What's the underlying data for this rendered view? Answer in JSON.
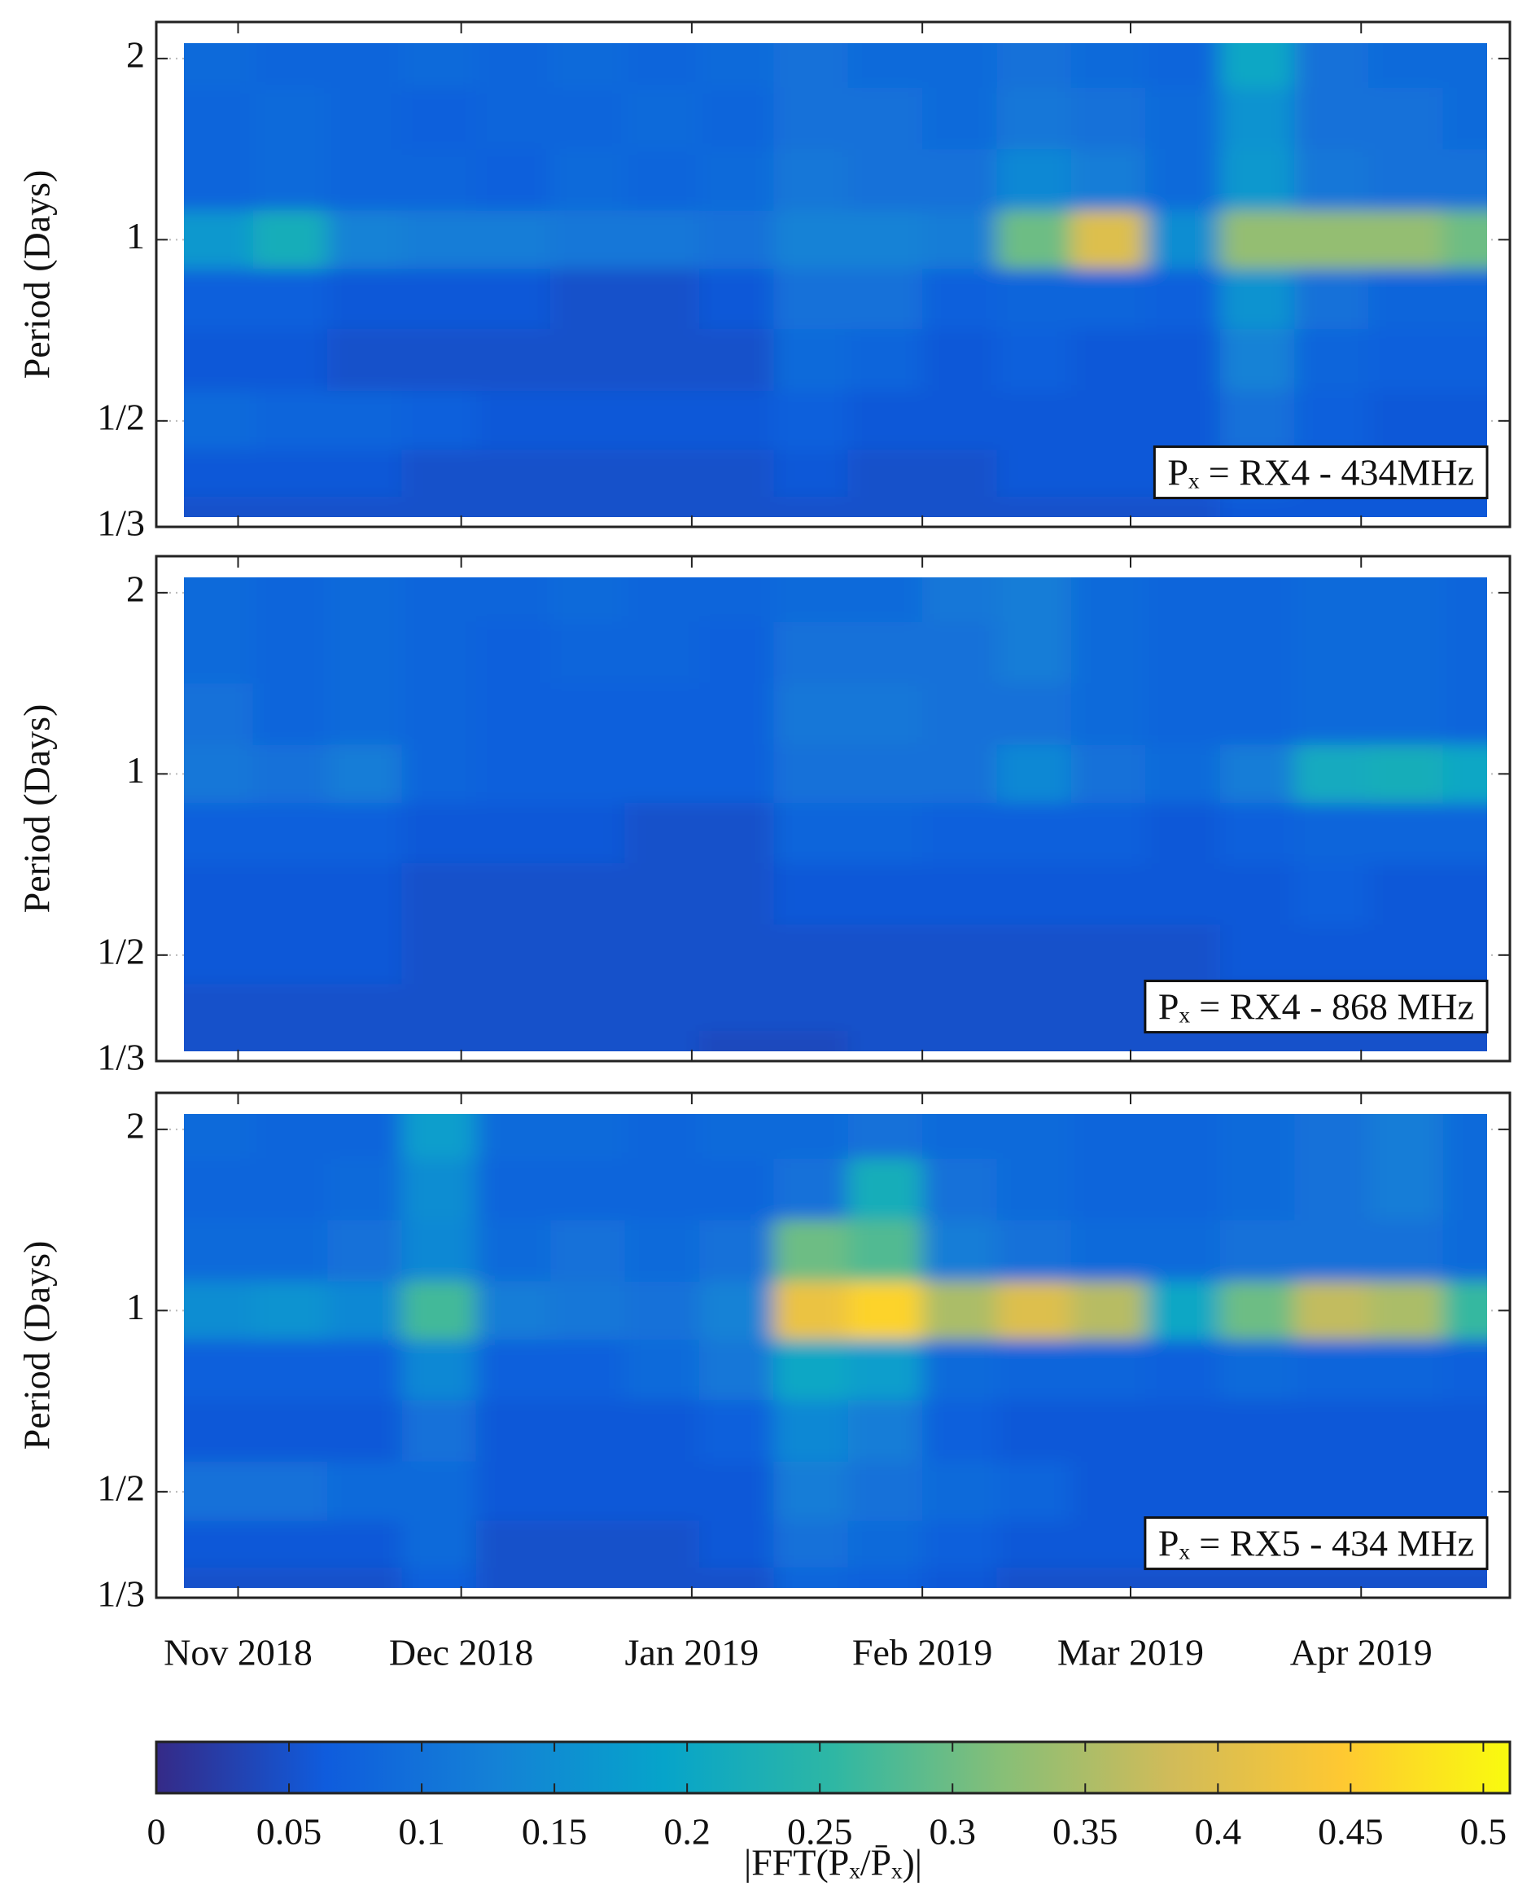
{
  "chart_data": [
    {
      "type": "heatmap",
      "y_label": "Period (Days)",
      "annotation": "Pₓ = RX4 - 434MHz",
      "xlim": [
        "2018-10-21",
        "2019-04-21"
      ],
      "xticks": [
        {
          "value": "2018-11-01",
          "label": "Nov 2018"
        },
        {
          "value": "2018-12-01",
          "label": "Dec 2018"
        },
        {
          "value": "2019-01-01",
          "label": "Jan 2019"
        },
        {
          "value": "2019-02-01",
          "label": "Feb 2019"
        },
        {
          "value": "2019-03-01",
          "label": "Mar 2019"
        },
        {
          "value": "2019-04-01",
          "label": "Apr 2019"
        }
      ],
      "ylim": [
        0.3333,
        2.3
      ],
      "log_y": true,
      "grid": true,
      "yticks": [
        {
          "value": 0.3333,
          "label": "1/3"
        },
        {
          "value": 0.5,
          "label": "1/2"
        },
        1,
        2
      ],
      "x": [
        "2018-10-29",
        "2018-11-08",
        "2018-11-18",
        "2018-11-28",
        "2018-12-08",
        "2018-12-18",
        "2018-12-28",
        "2019-01-07",
        "2019-01-17",
        "2019-01-27",
        "2019-02-06",
        "2019-02-16",
        "2019-02-26",
        "2019-03-08",
        "2019-03-18",
        "2019-03-28",
        "2019-04-07",
        "2019-04-17"
      ],
      "y": [
        2,
        1.6,
        1.25,
        1,
        0.8,
        0.63,
        0.5,
        0.4,
        0.35
      ],
      "z": [
        [
          0.09,
          0.08,
          0.08,
          0.09,
          0.08,
          0.09,
          0.08,
          0.09,
          0.1,
          0.09,
          0.09,
          0.1,
          0.09,
          0.08,
          0.2,
          0.1,
          0.09,
          0.09
        ],
        [
          0.08,
          0.09,
          0.08,
          0.07,
          0.08,
          0.08,
          0.09,
          0.08,
          0.1,
          0.1,
          0.09,
          0.11,
          0.1,
          0.09,
          0.16,
          0.1,
          0.1,
          0.09
        ],
        [
          0.08,
          0.09,
          0.08,
          0.08,
          0.07,
          0.09,
          0.08,
          0.09,
          0.11,
          0.1,
          0.1,
          0.14,
          0.12,
          0.09,
          0.17,
          0.11,
          0.1,
          0.1
        ],
        [
          0.17,
          0.22,
          0.13,
          0.12,
          0.12,
          0.11,
          0.11,
          0.1,
          0.13,
          0.13,
          0.12,
          0.3,
          0.4,
          0.15,
          0.33,
          0.33,
          0.33,
          0.3
        ],
        [
          0.07,
          0.07,
          0.06,
          0.06,
          0.06,
          0.05,
          0.05,
          0.06,
          0.1,
          0.1,
          0.07,
          0.08,
          0.08,
          0.07,
          0.16,
          0.1,
          0.08,
          0.08
        ],
        [
          0.06,
          0.06,
          0.05,
          0.05,
          0.05,
          0.05,
          0.05,
          0.05,
          0.09,
          0.08,
          0.06,
          0.07,
          0.06,
          0.06,
          0.13,
          0.08,
          0.07,
          0.07
        ],
        [
          0.09,
          0.08,
          0.08,
          0.07,
          0.06,
          0.06,
          0.06,
          0.06,
          0.07,
          0.06,
          0.06,
          0.06,
          0.06,
          0.06,
          0.1,
          0.07,
          0.06,
          0.06
        ],
        [
          0.06,
          0.06,
          0.06,
          0.05,
          0.05,
          0.05,
          0.05,
          0.05,
          0.06,
          0.05,
          0.05,
          0.06,
          0.06,
          0.06,
          0.08,
          0.06,
          0.06,
          0.06
        ],
        [
          0.05,
          0.05,
          0.05,
          0.05,
          0.05,
          0.05,
          0.05,
          0.05,
          0.05,
          0.05,
          0.05,
          0.05,
          0.05,
          0.05,
          0.06,
          0.06,
          0.06,
          0.06
        ]
      ]
    },
    {
      "type": "heatmap",
      "y_label": "Period (Days)",
      "annotation": "Pₓ = RX4 - 868 MHz",
      "xlim": [
        "2018-10-21",
        "2019-04-21"
      ],
      "xticks": [
        {
          "value": "2018-11-01",
          "label": "Nov 2018"
        },
        {
          "value": "2018-12-01",
          "label": "Dec 2018"
        },
        {
          "value": "2019-01-01",
          "label": "Jan 2019"
        },
        {
          "value": "2019-02-01",
          "label": "Feb 2019"
        },
        {
          "value": "2019-03-01",
          "label": "Mar 2019"
        },
        {
          "value": "2019-04-01",
          "label": "Apr 2019"
        }
      ],
      "ylim": [
        0.3333,
        2.3
      ],
      "log_y": true,
      "grid": true,
      "yticks": [
        {
          "value": 0.3333,
          "label": "1/3"
        },
        {
          "value": 0.5,
          "label": "1/2"
        },
        1,
        2
      ],
      "x": [
        "2018-10-29",
        "2018-11-08",
        "2018-11-18",
        "2018-11-28",
        "2018-12-08",
        "2018-12-18",
        "2018-12-28",
        "2019-01-07",
        "2019-01-17",
        "2019-01-27",
        "2019-02-06",
        "2019-02-16",
        "2019-02-26",
        "2019-03-08",
        "2019-03-18",
        "2019-03-28",
        "2019-04-07",
        "2019-04-17"
      ],
      "y": [
        2,
        1.6,
        1.25,
        1,
        0.8,
        0.63,
        0.5,
        0.4,
        0.35
      ],
      "z": [
        [
          0.09,
          0.08,
          0.09,
          0.08,
          0.08,
          0.09,
          0.08,
          0.08,
          0.09,
          0.09,
          0.11,
          0.12,
          0.09,
          0.08,
          0.08,
          0.09,
          0.09,
          0.08
        ],
        [
          0.09,
          0.08,
          0.09,
          0.08,
          0.07,
          0.08,
          0.08,
          0.07,
          0.1,
          0.1,
          0.1,
          0.12,
          0.09,
          0.08,
          0.08,
          0.09,
          0.09,
          0.08
        ],
        [
          0.1,
          0.08,
          0.09,
          0.08,
          0.07,
          0.07,
          0.07,
          0.07,
          0.11,
          0.11,
          0.1,
          0.1,
          0.09,
          0.08,
          0.08,
          0.09,
          0.09,
          0.08
        ],
        [
          0.11,
          0.1,
          0.12,
          0.08,
          0.07,
          0.07,
          0.07,
          0.07,
          0.1,
          0.1,
          0.1,
          0.14,
          0.1,
          0.09,
          0.12,
          0.21,
          0.22,
          0.2
        ],
        [
          0.07,
          0.07,
          0.07,
          0.06,
          0.06,
          0.06,
          0.05,
          0.05,
          0.08,
          0.08,
          0.07,
          0.07,
          0.07,
          0.06,
          0.07,
          0.08,
          0.08,
          0.08
        ],
        [
          0.06,
          0.06,
          0.06,
          0.05,
          0.05,
          0.05,
          0.05,
          0.05,
          0.06,
          0.06,
          0.06,
          0.06,
          0.06,
          0.06,
          0.06,
          0.07,
          0.06,
          0.06
        ],
        [
          0.06,
          0.06,
          0.06,
          0.05,
          0.05,
          0.05,
          0.05,
          0.05,
          0.05,
          0.05,
          0.05,
          0.05,
          0.05,
          0.05,
          0.06,
          0.06,
          0.06,
          0.06
        ],
        [
          0.05,
          0.05,
          0.05,
          0.05,
          0.05,
          0.05,
          0.05,
          0.05,
          0.05,
          0.05,
          0.05,
          0.05,
          0.05,
          0.05,
          0.05,
          0.05,
          0.05,
          0.05
        ],
        [
          0.05,
          0.05,
          0.05,
          0.05,
          0.05,
          0.05,
          0.05,
          0.04,
          0.04,
          0.05,
          0.05,
          0.05,
          0.05,
          0.05,
          0.05,
          0.05,
          0.05,
          0.05
        ]
      ]
    },
    {
      "type": "heatmap",
      "y_label": "Period (Days)",
      "annotation": "Pₓ = RX5 - 434 MHz",
      "xlim": [
        "2018-10-21",
        "2019-04-21"
      ],
      "xticks": [
        {
          "value": "2018-11-01",
          "label": "Nov 2018"
        },
        {
          "value": "2018-12-01",
          "label": "Dec 2018"
        },
        {
          "value": "2019-01-01",
          "label": "Jan 2019"
        },
        {
          "value": "2019-02-01",
          "label": "Feb 2019"
        },
        {
          "value": "2019-03-01",
          "label": "Mar 2019"
        },
        {
          "value": "2019-04-01",
          "label": "Apr 2019"
        }
      ],
      "ylim": [
        0.3333,
        2.3
      ],
      "log_y": true,
      "grid": true,
      "yticks": [
        {
          "value": 0.3333,
          "label": "1/3"
        },
        {
          "value": 0.5,
          "label": "1/2"
        },
        1,
        2
      ],
      "x": [
        "2018-10-29",
        "2018-11-08",
        "2018-11-18",
        "2018-11-28",
        "2018-12-08",
        "2018-12-18",
        "2018-12-28",
        "2019-01-07",
        "2019-01-17",
        "2019-01-27",
        "2019-02-06",
        "2019-02-16",
        "2019-02-26",
        "2019-03-08",
        "2019-03-18",
        "2019-03-28",
        "2019-04-07",
        "2019-04-17"
      ],
      "y": [
        2,
        1.6,
        1.25,
        1,
        0.8,
        0.63,
        0.5,
        0.4,
        0.35
      ],
      "z": [
        [
          0.09,
          0.08,
          0.08,
          0.18,
          0.09,
          0.09,
          0.08,
          0.09,
          0.09,
          0.1,
          0.09,
          0.09,
          0.08,
          0.08,
          0.09,
          0.1,
          0.12,
          0.09
        ],
        [
          0.08,
          0.08,
          0.09,
          0.15,
          0.08,
          0.08,
          0.08,
          0.08,
          0.1,
          0.22,
          0.1,
          0.09,
          0.08,
          0.08,
          0.09,
          0.1,
          0.12,
          0.09
        ],
        [
          0.09,
          0.09,
          0.1,
          0.14,
          0.09,
          0.1,
          0.09,
          0.1,
          0.3,
          0.28,
          0.12,
          0.1,
          0.09,
          0.09,
          0.1,
          0.1,
          0.1,
          0.09
        ],
        [
          0.15,
          0.16,
          0.14,
          0.27,
          0.12,
          0.11,
          0.1,
          0.13,
          0.42,
          0.46,
          0.35,
          0.4,
          0.36,
          0.2,
          0.3,
          0.37,
          0.35,
          0.26
        ],
        [
          0.07,
          0.07,
          0.07,
          0.14,
          0.07,
          0.07,
          0.09,
          0.11,
          0.2,
          0.18,
          0.09,
          0.08,
          0.08,
          0.07,
          0.09,
          0.08,
          0.08,
          0.07
        ],
        [
          0.06,
          0.06,
          0.06,
          0.1,
          0.06,
          0.06,
          0.06,
          0.07,
          0.14,
          0.12,
          0.07,
          0.06,
          0.06,
          0.06,
          0.06,
          0.06,
          0.06,
          0.06
        ],
        [
          0.1,
          0.1,
          0.09,
          0.09,
          0.06,
          0.06,
          0.06,
          0.06,
          0.12,
          0.1,
          0.09,
          0.08,
          0.06,
          0.06,
          0.06,
          0.06,
          0.06,
          0.06
        ],
        [
          0.06,
          0.06,
          0.06,
          0.09,
          0.05,
          0.05,
          0.05,
          0.06,
          0.1,
          0.09,
          0.07,
          0.06,
          0.06,
          0.06,
          0.06,
          0.06,
          0.06,
          0.06
        ],
        [
          0.05,
          0.05,
          0.05,
          0.07,
          0.05,
          0.05,
          0.05,
          0.05,
          0.08,
          0.07,
          0.06,
          0.05,
          0.05,
          0.05,
          0.05,
          0.05,
          0.05,
          0.05
        ]
      ]
    }
  ],
  "colorbar": {
    "label": "|FFT(Pₓ/P̄ₓ)|",
    "clim": [
      0,
      0.51
    ],
    "ticks": [
      0,
      0.05,
      0.1,
      0.15,
      0.2,
      0.25,
      0.3,
      0.35,
      0.4,
      0.45,
      0.5
    ],
    "colormap": [
      "#352a87",
      "#0f5cdd",
      "#1481d6",
      "#06a4ca",
      "#2eb7a4",
      "#87bf77",
      "#d1bb59",
      "#fec832",
      "#f9fb0e"
    ]
  }
}
